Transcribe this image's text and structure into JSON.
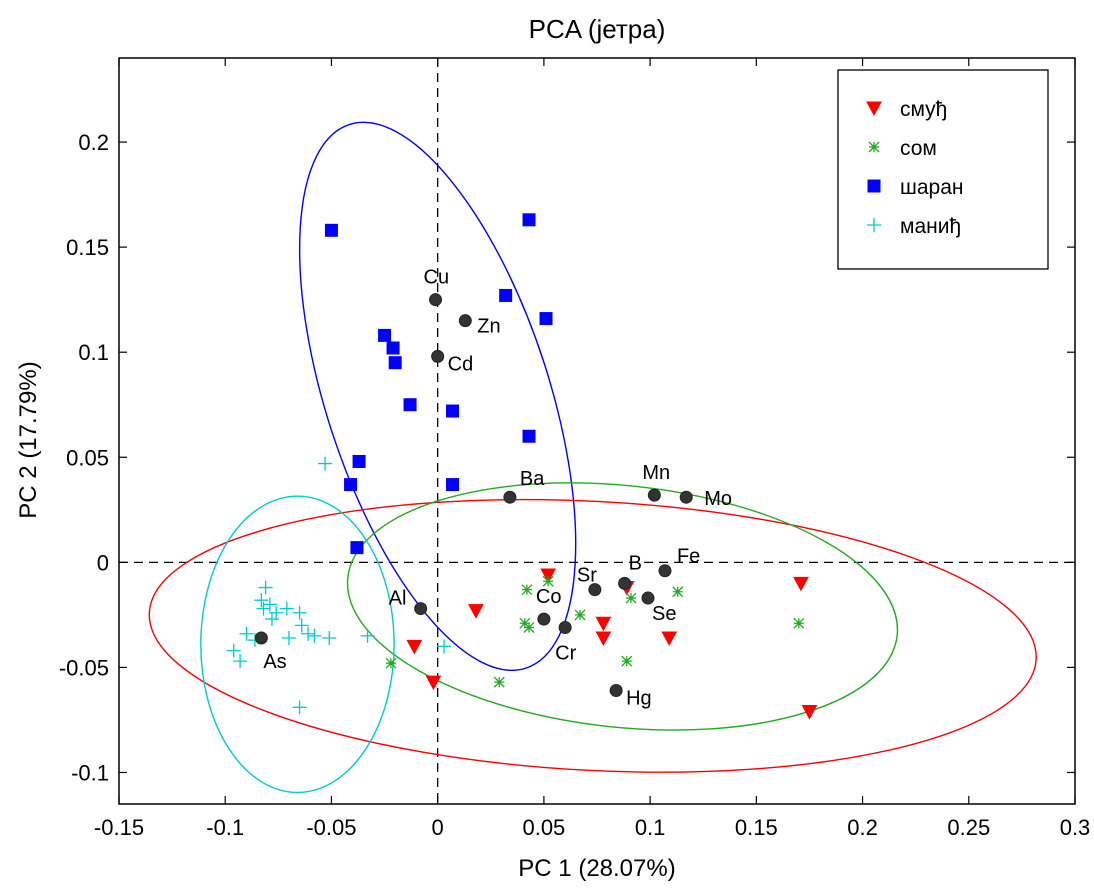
{
  "chart_data": {
    "type": "scatter",
    "title": "PCA (јетра)",
    "xlabel": "PC 1 (28.07%)",
    "ylabel": "PC 2 (17.79%)",
    "xlim": [
      -0.15,
      0.3
    ],
    "ylim": [
      -0.115,
      0.24
    ],
    "xticks": [
      -0.15,
      -0.1,
      -0.05,
      0,
      0.05,
      0.1,
      0.15,
      0.2,
      0.25,
      0.3
    ],
    "xtick_labels": [
      "-0.15",
      "-0.1",
      "-0.05",
      "0",
      "0.05",
      "0.1",
      "0.15",
      "0.2",
      "0.25",
      "0.3"
    ],
    "yticks": [
      -0.1,
      -0.05,
      0,
      0.05,
      0.1,
      0.15,
      0.2
    ],
    "ytick_labels": [
      "-0.1",
      "-0.05",
      "0",
      "0.05",
      "0.1",
      "0.15",
      "0.2"
    ],
    "grid": false,
    "zero_lines": true,
    "legend_position": "top-right",
    "series": [
      {
        "name": "смуђ",
        "marker": "triangle-down",
        "color": "#ff0000",
        "points": [
          [
            0.052,
            -0.006
          ],
          [
            0.089,
            -0.012
          ],
          [
            0.018,
            -0.023
          ],
          [
            0.078,
            -0.029
          ],
          [
            0.078,
            -0.036
          ],
          [
            0.109,
            -0.036
          ],
          [
            -0.011,
            -0.04
          ],
          [
            -0.002,
            -0.057
          ],
          [
            0.171,
            -0.01
          ],
          [
            0.175,
            -0.071
          ]
        ]
      },
      {
        "name": "сом",
        "marker": "asterisk",
        "color": "#22aa22",
        "points": [
          [
            0.052,
            -0.009
          ],
          [
            0.042,
            -0.013
          ],
          [
            0.091,
            -0.017
          ],
          [
            0.113,
            -0.014
          ],
          [
            0.067,
            -0.025
          ],
          [
            0.041,
            -0.029
          ],
          [
            0.043,
            -0.031
          ],
          [
            0.17,
            -0.029
          ],
          [
            0.089,
            -0.047
          ],
          [
            -0.022,
            -0.048
          ],
          [
            0.029,
            -0.057
          ]
        ]
      },
      {
        "name": "шаран",
        "marker": "square",
        "color": "#0000ff",
        "points": [
          [
            -0.05,
            0.158
          ],
          [
            0.043,
            0.163
          ],
          [
            0.032,
            0.127
          ],
          [
            0.051,
            0.116
          ],
          [
            -0.025,
            0.108
          ],
          [
            -0.021,
            0.102
          ],
          [
            -0.02,
            0.095
          ],
          [
            -0.013,
            0.075
          ],
          [
            0.007,
            0.072
          ],
          [
            0.043,
            0.06
          ],
          [
            -0.037,
            0.048
          ],
          [
            -0.041,
            0.037
          ],
          [
            0.007,
            0.037
          ],
          [
            -0.038,
            0.007
          ]
        ]
      },
      {
        "name": "маниђ",
        "marker": "plus",
        "color": "#00cccc",
        "points": [
          [
            -0.053,
            0.047
          ],
          [
            -0.081,
            -0.012
          ],
          [
            -0.083,
            -0.018
          ],
          [
            -0.079,
            -0.02
          ],
          [
            -0.082,
            -0.022
          ],
          [
            -0.076,
            -0.024
          ],
          [
            -0.071,
            -0.022
          ],
          [
            -0.065,
            -0.024
          ],
          [
            -0.078,
            -0.027
          ],
          [
            -0.064,
            -0.03
          ],
          [
            -0.061,
            -0.034
          ],
          [
            -0.058,
            -0.035
          ],
          [
            -0.07,
            -0.036
          ],
          [
            -0.09,
            -0.034
          ],
          [
            -0.086,
            -0.037
          ],
          [
            -0.033,
            -0.035
          ],
          [
            -0.051,
            -0.036
          ],
          [
            -0.096,
            -0.042
          ],
          [
            -0.093,
            -0.047
          ],
          [
            0.003,
            -0.04
          ],
          [
            -0.065,
            -0.069
          ]
        ]
      }
    ],
    "loadings": [
      {
        "label": "Cu",
        "x": -0.001,
        "y": 0.125
      },
      {
        "label": "Zn",
        "x": 0.013,
        "y": 0.115
      },
      {
        "label": "Cd",
        "x": 0.0,
        "y": 0.098
      },
      {
        "label": "Ba",
        "x": 0.034,
        "y": 0.031
      },
      {
        "label": "Mn",
        "x": 0.102,
        "y": 0.032
      },
      {
        "label": "Mo",
        "x": 0.117,
        "y": 0.031
      },
      {
        "label": "Sr",
        "x": 0.074,
        "y": -0.013
      },
      {
        "label": "B",
        "x": 0.088,
        "y": -0.01
      },
      {
        "label": "Fe",
        "x": 0.107,
        "y": -0.004
      },
      {
        "label": "Se",
        "x": 0.099,
        "y": -0.017
      },
      {
        "label": "Co",
        "x": 0.05,
        "y": -0.027
      },
      {
        "label": "Cr",
        "x": 0.06,
        "y": -0.031
      },
      {
        "label": "Al",
        "x": -0.008,
        "y": -0.022
      },
      {
        "label": "As",
        "x": -0.083,
        "y": -0.036
      },
      {
        "label": "Hg",
        "x": 0.084,
        "y": -0.061
      }
    ],
    "ellipses": [
      {
        "color": "#0000ff",
        "cx": 0.0,
        "cy": 0.079,
        "rx_data": 0.0525,
        "ry_data": 0.136,
        "angle_deg": -18
      },
      {
        "color": "#ff0000",
        "cx": 0.073,
        "cy": -0.035,
        "rx_data": 0.209,
        "ry_data": 0.064,
        "angle_deg": 3
      },
      {
        "color": "#22aa22",
        "cx": 0.087,
        "cy": -0.021,
        "rx_data": 0.13,
        "ry_data": 0.0575,
        "angle_deg": 6
      },
      {
        "color": "#00cccc",
        "cx": -0.066,
        "cy": -0.039,
        "rx_data": 0.0455,
        "ry_data": 0.0705,
        "angle_deg": 0
      }
    ]
  }
}
